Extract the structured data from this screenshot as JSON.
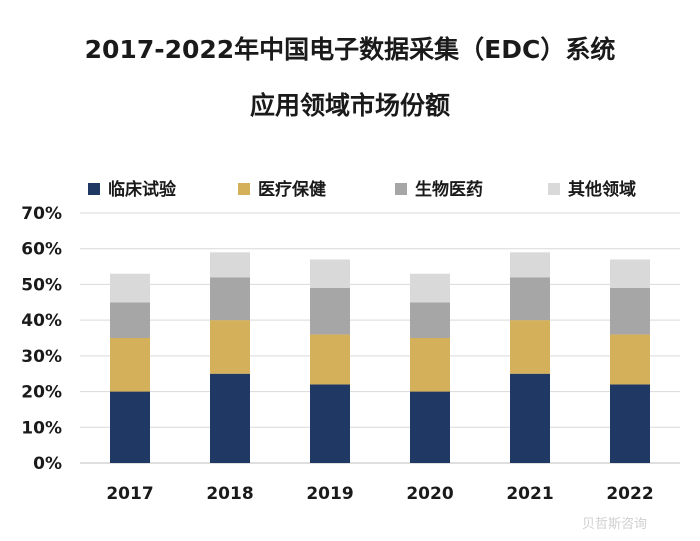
{
  "title_line1": "2017-2022年中国电子数据采集（EDC）系统",
  "title_line2": "应用领域市场份额",
  "watermark": "贝哲斯咨询",
  "chart_data": {
    "type": "bar",
    "stacked": true,
    "title": "2017-2022年中国电子数据采集（EDC）系统应用领域市场份额",
    "categories": [
      "2017",
      "2018",
      "2019",
      "2020",
      "2021",
      "2022"
    ],
    "series": [
      {
        "name": "临床试验",
        "color": "#1f3864",
        "values": [
          0.2,
          0.25,
          0.22,
          0.2,
          0.25,
          0.22
        ]
      },
      {
        "name": "医疗保健",
        "color": "#d4b05a",
        "values": [
          0.15,
          0.15,
          0.14,
          0.15,
          0.15,
          0.14
        ]
      },
      {
        "name": "生物医药",
        "color": "#a6a6a6",
        "values": [
          0.1,
          0.12,
          0.13,
          0.1,
          0.12,
          0.13
        ]
      },
      {
        "name": "其他领域",
        "color": "#d9d9d9",
        "values": [
          0.08,
          0.07,
          0.08,
          0.08,
          0.07,
          0.08
        ]
      }
    ],
    "ylim": [
      0,
      0.7
    ],
    "yticks": [
      "0%",
      "10%",
      "20%",
      "30%",
      "40%",
      "50%",
      "60%",
      "70%"
    ],
    "grid": true,
    "legend_position": "top"
  }
}
